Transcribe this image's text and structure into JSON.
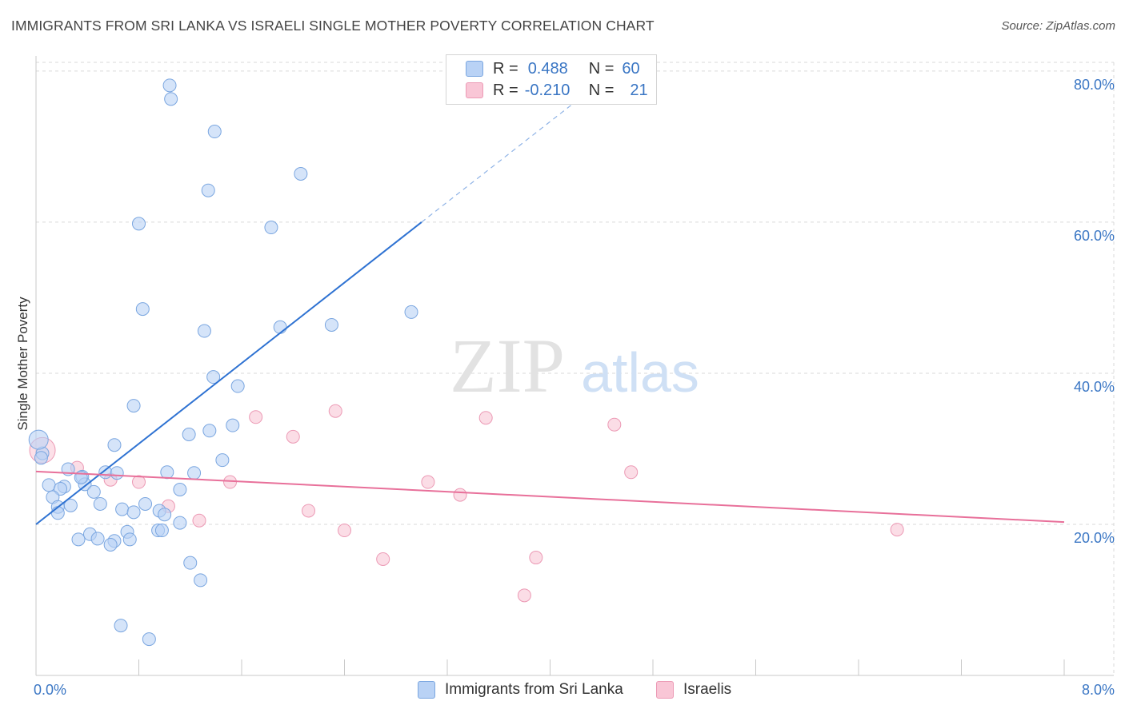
{
  "header": {
    "title": "IMMIGRANTS FROM SRI LANKA VS ISRAELI SINGLE MOTHER POVERTY CORRELATION CHART",
    "source": "Source: ZipAtlas.com"
  },
  "watermark": {
    "zip": "ZIP",
    "atlas": "atlas"
  },
  "legend": {
    "rows": [
      {
        "r_label": "R =",
        "r_value": "0.488",
        "n_label": "N =",
        "n_value": "60"
      },
      {
        "r_label": "R =",
        "r_value": "-0.210",
        "n_label": "N =",
        "n_value": "21"
      }
    ]
  },
  "bottom_legend": {
    "series1": "Immigrants from Sri Lanka",
    "series2": "Israelis"
  },
  "colors": {
    "blue_fill": "#b9d2f5",
    "blue_stroke": "#7aa6e0",
    "blue_line": "#2e72d2",
    "pink_fill": "#f9c6d6",
    "pink_stroke": "#ec9ab5",
    "pink_line": "#e8709a",
    "grid": "#d9d9d9",
    "tick_label": "#3a76c4"
  },
  "chart_data": {
    "type": "scatter",
    "title": "IMMIGRANTS FROM SRI LANKA VS ISRAELI SINGLE MOTHER POVERTY CORRELATION CHART",
    "xlabel": "",
    "ylabel": "Single Mother Poverty",
    "xlim": [
      0,
      8
    ],
    "ylim": [
      0,
      82
    ],
    "x_tick_labels": [
      "0.0%",
      "8.0%"
    ],
    "y_ticks": [
      20,
      40,
      60,
      80
    ],
    "y_tick_labels": [
      "20.0%",
      "40.0%",
      "60.0%",
      "80.0%"
    ],
    "series": [
      {
        "name": "Immigrants from Sri Lanka",
        "R": 0.488,
        "N": 60,
        "trend": {
          "x0": 0.0,
          "y0": 20.0,
          "x1": 3.0,
          "y1": 60.0,
          "dash_to_x": 4.3,
          "dash_to_y": 77.3
        },
        "points": [
          [
            1.04,
            78.1
          ],
          [
            1.05,
            76.3
          ],
          [
            1.39,
            72.0
          ],
          [
            2.06,
            66.4
          ],
          [
            1.34,
            64.2
          ],
          [
            0.8,
            59.8
          ],
          [
            1.83,
            59.3
          ],
          [
            0.83,
            48.5
          ],
          [
            2.92,
            48.1
          ],
          [
            2.3,
            46.4
          ],
          [
            1.9,
            46.1
          ],
          [
            1.31,
            45.6
          ],
          [
            1.38,
            39.5
          ],
          [
            1.57,
            38.3
          ],
          [
            0.76,
            35.7
          ],
          [
            1.53,
            33.1
          ],
          [
            1.35,
            32.4
          ],
          [
            1.19,
            31.9
          ],
          [
            0.61,
            30.5
          ],
          [
            0.05,
            29.4
          ],
          [
            0.04,
            28.8
          ],
          [
            1.45,
            28.5
          ],
          [
            0.25,
            27.3
          ],
          [
            1.02,
            26.9
          ],
          [
            1.23,
            26.8
          ],
          [
            0.54,
            26.9
          ],
          [
            0.36,
            26.3
          ],
          [
            0.1,
            25.2
          ],
          [
            0.38,
            25.3
          ],
          [
            0.22,
            25.0
          ],
          [
            0.19,
            24.7
          ],
          [
            0.45,
            24.3
          ],
          [
            1.12,
            24.6
          ],
          [
            0.13,
            23.6
          ],
          [
            0.5,
            22.7
          ],
          [
            0.27,
            22.5
          ],
          [
            0.17,
            22.3
          ],
          [
            0.85,
            22.7
          ],
          [
            0.67,
            22.0
          ],
          [
            0.96,
            21.8
          ],
          [
            0.76,
            21.6
          ],
          [
            0.17,
            21.5
          ],
          [
            1.0,
            21.3
          ],
          [
            1.12,
            20.2
          ],
          [
            0.71,
            19.0
          ],
          [
            0.95,
            19.2
          ],
          [
            0.98,
            19.2
          ],
          [
            0.42,
            18.7
          ],
          [
            0.33,
            18.0
          ],
          [
            0.48,
            18.1
          ],
          [
            0.61,
            17.8
          ],
          [
            0.73,
            18.0
          ],
          [
            0.58,
            17.3
          ],
          [
            1.2,
            14.9
          ],
          [
            1.28,
            12.6
          ],
          [
            0.66,
            6.6
          ],
          [
            0.88,
            4.8
          ],
          [
            0.02,
            31.2
          ],
          [
            0.63,
            26.8
          ],
          [
            0.35,
            26.2
          ]
        ]
      },
      {
        "name": "Israelis",
        "R": -0.21,
        "N": 21,
        "trend": {
          "x0": 0.0,
          "y0": 27.0,
          "x1": 8.0,
          "y1": 20.3
        },
        "points": [
          [
            0.05,
            29.8
          ],
          [
            0.32,
            27.5
          ],
          [
            2.33,
            35.0
          ],
          [
            1.71,
            34.2
          ],
          [
            3.5,
            34.1
          ],
          [
            4.5,
            33.2
          ],
          [
            2.0,
            31.6
          ],
          [
            4.63,
            26.9
          ],
          [
            0.58,
            25.9
          ],
          [
            0.8,
            25.6
          ],
          [
            1.51,
            25.6
          ],
          [
            3.05,
            25.6
          ],
          [
            3.3,
            23.9
          ],
          [
            1.03,
            22.4
          ],
          [
            2.12,
            21.8
          ],
          [
            1.27,
            20.5
          ],
          [
            2.4,
            19.2
          ],
          [
            6.7,
            19.3
          ],
          [
            2.7,
            15.4
          ],
          [
            3.89,
            15.6
          ],
          [
            3.8,
            10.6
          ]
        ]
      }
    ]
  }
}
